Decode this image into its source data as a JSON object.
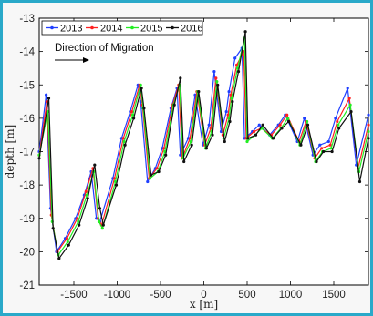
{
  "chart_data": {
    "type": "line",
    "title": "",
    "xlabel": "x [m]",
    "ylabel": "depth [m]",
    "xlim": [
      -1900,
      1900
    ],
    "ylim": [
      -21,
      -13
    ],
    "xticks": [
      -1500,
      -1000,
      -500,
      0,
      500,
      1000,
      1500
    ],
    "yticks": [
      -21,
      -20,
      -19,
      -18,
      -17,
      -16,
      -15,
      -14,
      -13
    ],
    "legend_position": "top-left",
    "annotation": "Direction of Migration",
    "series": [
      {
        "name": "2013",
        "color": "#1f3fff",
        "x": [
          -1900,
          -1820,
          -1770,
          -1700,
          -1600,
          -1480,
          -1380,
          -1300,
          -1240,
          -1200,
          -1050,
          -950,
          -850,
          -760,
          -730,
          -650,
          -560,
          -480,
          -380,
          -310,
          -270,
          -180,
          -100,
          -10,
          60,
          120,
          200,
          260,
          290,
          360,
          440,
          470,
          560,
          640,
          760,
          860,
          940,
          1080,
          1160,
          1260,
          1340,
          1440,
          1520,
          1660,
          1760,
          1900
        ],
        "y": [
          -17.0,
          -15.3,
          -18.7,
          -20.0,
          -19.6,
          -19.0,
          -18.3,
          -17.6,
          -19.0,
          -19.1,
          -17.8,
          -16.6,
          -15.8,
          -15.0,
          -15.5,
          -17.9,
          -17.5,
          -16.9,
          -15.7,
          -15.1,
          -17.1,
          -16.6,
          -15.3,
          -16.8,
          -16.2,
          -14.6,
          -16.4,
          -15.8,
          -15.2,
          -14.2,
          -13.9,
          -16.6,
          -16.4,
          -16.2,
          -16.5,
          -16.2,
          -15.9,
          -16.7,
          -16.0,
          -17.1,
          -16.8,
          -16.7,
          -16.0,
          -15.1,
          -17.4,
          -15.9
        ]
      },
      {
        "name": "2014",
        "color": "#ff2020",
        "x": [
          -1900,
          -1810,
          -1760,
          -1690,
          -1580,
          -1460,
          -1360,
          -1280,
          -1220,
          -1180,
          -1030,
          -930,
          -830,
          -740,
          -710,
          -630,
          -540,
          -460,
          -360,
          -290,
          -250,
          -160,
          -80,
          10,
          80,
          140,
          220,
          280,
          310,
          380,
          460,
          490,
          580,
          660,
          780,
          880,
          960,
          1100,
          1180,
          1280,
          1360,
          1460,
          1540,
          1680,
          1780,
          1900
        ],
        "y": [
          -17.1,
          -15.5,
          -18.9,
          -20.0,
          -19.6,
          -19.0,
          -18.2,
          -17.5,
          -19.0,
          -19.2,
          -17.8,
          -16.6,
          -15.8,
          -15.0,
          -15.6,
          -17.8,
          -17.5,
          -16.9,
          -15.6,
          -15.0,
          -17.2,
          -16.6,
          -15.2,
          -16.8,
          -16.3,
          -14.8,
          -16.5,
          -15.9,
          -15.3,
          -14.4,
          -14.0,
          -16.6,
          -16.4,
          -16.3,
          -16.5,
          -16.2,
          -15.9,
          -16.7,
          -16.1,
          -17.2,
          -16.9,
          -16.8,
          -16.1,
          -15.4,
          -17.5,
          -16.2
        ]
      },
      {
        "name": "2015",
        "color": "#22ee22",
        "x": [
          -1900,
          -1800,
          -1750,
          -1680,
          -1570,
          -1450,
          -1350,
          -1270,
          -1210,
          -1170,
          -1020,
          -920,
          -820,
          -730,
          -700,
          -620,
          -530,
          -450,
          -350,
          -280,
          -240,
          -150,
          -70,
          20,
          90,
          150,
          230,
          290,
          320,
          390,
          470,
          500,
          590,
          670,
          790,
          890,
          970,
          1110,
          1190,
          1290,
          1370,
          1470,
          1550,
          1690,
          1790,
          1900
        ],
        "y": [
          -17.1,
          -15.8,
          -19.1,
          -20.1,
          -19.7,
          -19.1,
          -18.3,
          -17.6,
          -19.1,
          -19.3,
          -17.9,
          -16.7,
          -15.9,
          -15.0,
          -15.7,
          -17.8,
          -17.6,
          -17.0,
          -15.6,
          -15.0,
          -17.2,
          -16.7,
          -15.2,
          -16.9,
          -16.4,
          -14.9,
          -16.6,
          -16.0,
          -15.4,
          -14.5,
          -13.6,
          -16.7,
          -16.5,
          -16.3,
          -16.6,
          -16.3,
          -16.0,
          -16.8,
          -16.1,
          -17.3,
          -17.0,
          -16.9,
          -16.2,
          -15.6,
          -17.6,
          -16.4
        ]
      },
      {
        "name": "2016",
        "color": "#111111",
        "x": [
          -1900,
          -1790,
          -1740,
          -1670,
          -1560,
          -1440,
          -1340,
          -1260,
          -1200,
          -1160,
          -1010,
          -910,
          -810,
          -720,
          -690,
          -610,
          -520,
          -440,
          -340,
          -270,
          -230,
          -140,
          -60,
          30,
          100,
          160,
          240,
          300,
          330,
          400,
          480,
          510,
          600,
          680,
          800,
          900,
          980,
          1120,
          1200,
          1300,
          1380,
          1480,
          1560,
          1700,
          1800,
          1900
        ],
        "y": [
          -17.2,
          -15.4,
          -19.3,
          -20.2,
          -19.8,
          -19.2,
          -18.4,
          -17.4,
          -18.7,
          -19.2,
          -18.0,
          -16.8,
          -16.0,
          -15.1,
          -15.7,
          -17.7,
          -17.6,
          -17.1,
          -15.6,
          -14.8,
          -17.3,
          -16.8,
          -15.2,
          -16.9,
          -16.5,
          -15.0,
          -16.7,
          -16.1,
          -15.5,
          -14.6,
          -13.4,
          -16.6,
          -16.5,
          -16.2,
          -16.6,
          -16.3,
          -16.1,
          -16.8,
          -16.2,
          -17.3,
          -17.0,
          -17.0,
          -16.3,
          -15.8,
          -17.9,
          -16.6
        ]
      }
    ]
  }
}
